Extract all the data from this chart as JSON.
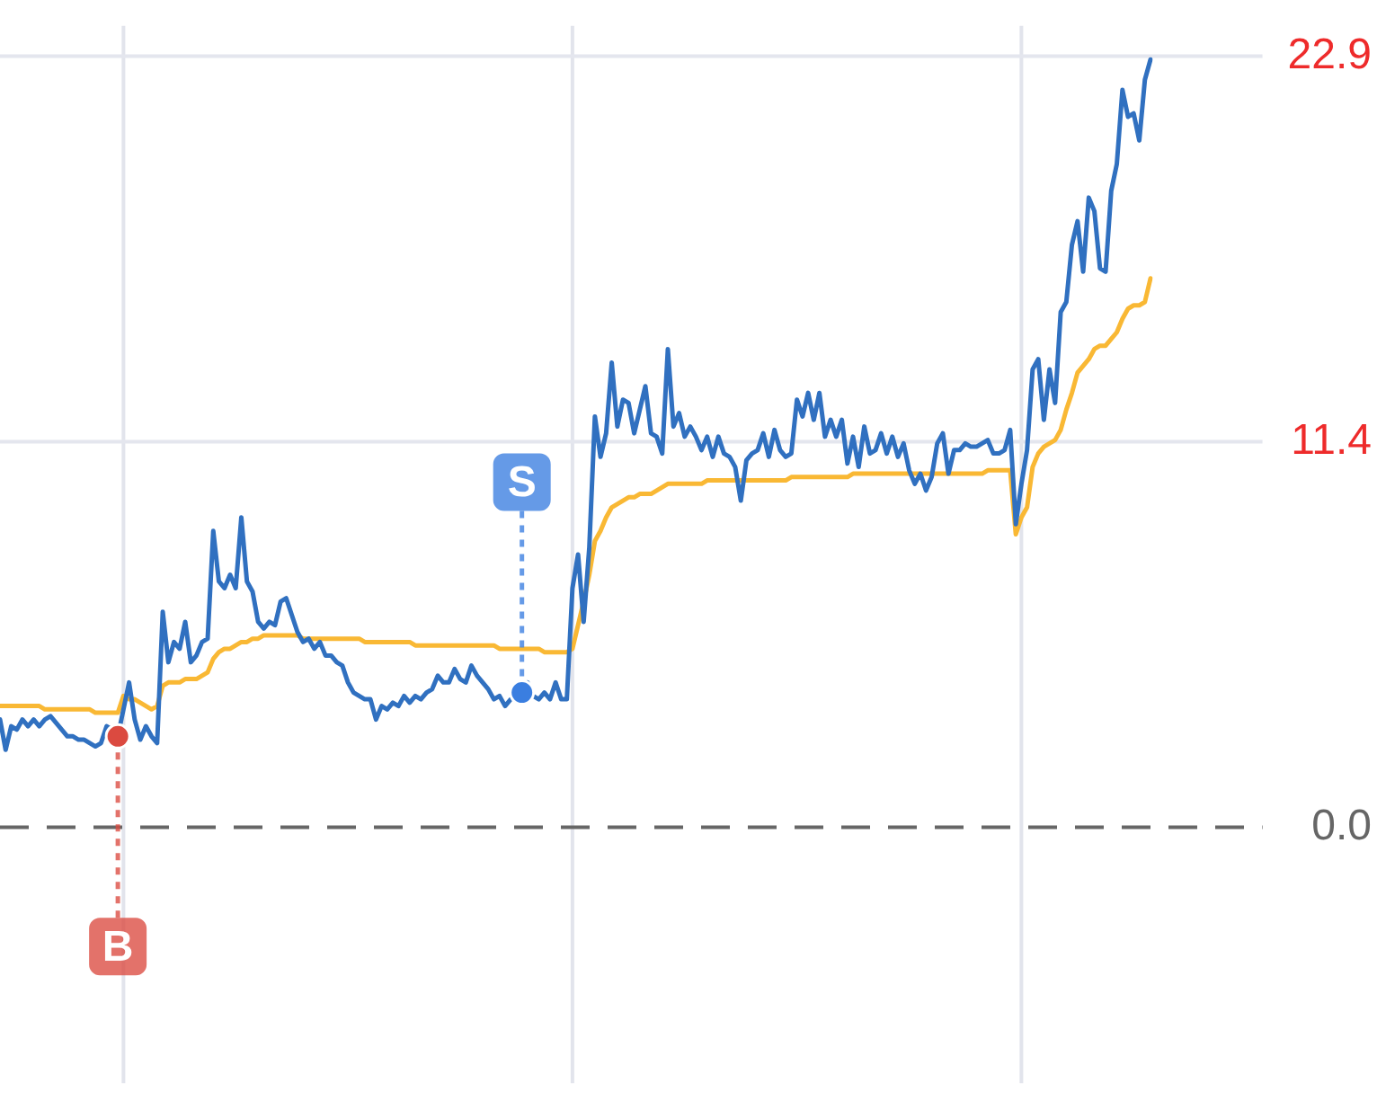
{
  "chart_data": {
    "type": "line",
    "categories": [
      null,
      null,
      null,
      null,
      null,
      null,
      null,
      null,
      null,
      null,
      null,
      null,
      null,
      null,
      null,
      null,
      null,
      null,
      null,
      null,
      null,
      null,
      null,
      null,
      null,
      null,
      null,
      null,
      null,
      null,
      null,
      null,
      null,
      null,
      null,
      null,
      null,
      null,
      null,
      null,
      null,
      null,
      null,
      null,
      null,
      null,
      null,
      null,
      null,
      null,
      null,
      null,
      null,
      null,
      null,
      null,
      null,
      null,
      null,
      null,
      null,
      null,
      null,
      null,
      null,
      null,
      null,
      null,
      null,
      null,
      null,
      null,
      null,
      null,
      null,
      null,
      null,
      null,
      null,
      null,
      null,
      null,
      null,
      null,
      null,
      null,
      null,
      null,
      null,
      null,
      null,
      null,
      null,
      null,
      null,
      null,
      null,
      null,
      null,
      null,
      null,
      null,
      null,
      null,
      null,
      null,
      null,
      null,
      null,
      null,
      null,
      null,
      null,
      null,
      null,
      null,
      null,
      null,
      null,
      null,
      null,
      null,
      null,
      null,
      null,
      null,
      null,
      null,
      null,
      null,
      null,
      null,
      null,
      null,
      null,
      null,
      null,
      null,
      null,
      null,
      null,
      null,
      null,
      null,
      null,
      null,
      null,
      null,
      null,
      null,
      null,
      null,
      null,
      null,
      null,
      null,
      null,
      null,
      null,
      null,
      null,
      null,
      null,
      null,
      null,
      null,
      null,
      null,
      null,
      null,
      null,
      null,
      null,
      null,
      null,
      null,
      null,
      null,
      null,
      null,
      null,
      null,
      null,
      null,
      null,
      null,
      null,
      null,
      null,
      null,
      null,
      null,
      null,
      null,
      null,
      null,
      null,
      null,
      null,
      null,
      null,
      null,
      null,
      null,
      null,
      null
    ],
    "series": [
      {
        "color": "#3070c0",
        "values": [
          3.2,
          2.3,
          3.0,
          2.9,
          3.2,
          3.0,
          3.2,
          3.0,
          3.2,
          3.3,
          3.1,
          2.9,
          2.7,
          2.7,
          2.6,
          2.6,
          2.5,
          2.4,
          2.5,
          3.0,
          2.9,
          2.7,
          3.5,
          4.3,
          3.2,
          2.6,
          3.0,
          2.7,
          2.5,
          6.4,
          4.9,
          5.5,
          5.3,
          6.1,
          4.9,
          5.1,
          5.5,
          5.6,
          8.8,
          7.3,
          7.1,
          7.5,
          7.1,
          9.2,
          7.3,
          7.0,
          6.1,
          5.9,
          6.1,
          6.0,
          6.7,
          6.8,
          6.3,
          5.8,
          5.5,
          5.6,
          5.3,
          5.5,
          5.1,
          5.1,
          4.9,
          4.8,
          4.3,
          4.0,
          3.9,
          3.8,
          3.8,
          3.2,
          3.6,
          3.5,
          3.7,
          3.6,
          3.9,
          3.7,
          3.9,
          3.8,
          4.0,
          4.1,
          4.5,
          4.3,
          4.3,
          4.7,
          4.4,
          4.3,
          4.8,
          4.5,
          4.3,
          4.1,
          3.8,
          3.9,
          3.6,
          3.8,
          3.9,
          4.0,
          4.3,
          3.9,
          3.8,
          4.0,
          3.8,
          4.3,
          3.8,
          3.8,
          7.1,
          8.1,
          6.1,
          8.3,
          12.2,
          11.0,
          11.7,
          13.8,
          11.9,
          12.7,
          12.6,
          11.7,
          12.4,
          13.1,
          11.7,
          11.6,
          11.1,
          14.2,
          11.9,
          12.3,
          11.6,
          11.9,
          11.6,
          11.2,
          11.6,
          11.0,
          11.6,
          11.1,
          11.0,
          10.7,
          9.7,
          10.9,
          11.1,
          11.2,
          11.7,
          11.0,
          11.8,
          11.2,
          11.0,
          11.1,
          12.7,
          12.2,
          12.9,
          12.1,
          12.9,
          11.6,
          12.1,
          11.6,
          12.1,
          10.8,
          11.6,
          10.7,
          11.9,
          11.1,
          11.2,
          11.7,
          11.1,
          11.6,
          11.0,
          11.4,
          10.6,
          10.2,
          10.5,
          10.0,
          10.4,
          11.4,
          11.7,
          10.5,
          11.2,
          11.2,
          11.4,
          11.3,
          11.3,
          11.4,
          11.5,
          11.1,
          11.1,
          11.2,
          11.8,
          9.0,
          10.2,
          11.2,
          13.6,
          13.9,
          12.1,
          13.6,
          12.6,
          15.3,
          15.6,
          17.3,
          18.0,
          16.5,
          18.7,
          18.3,
          16.6,
          16.5,
          18.9,
          19.7,
          21.9,
          21.1,
          21.2,
          20.4,
          22.2,
          22.8
        ]
      },
      {
        "color": "#f9b834",
        "values": [
          3.6,
          3.6,
          3.6,
          3.6,
          3.6,
          3.6,
          3.6,
          3.6,
          3.5,
          3.5,
          3.5,
          3.5,
          3.5,
          3.5,
          3.5,
          3.5,
          3.5,
          3.4,
          3.4,
          3.4,
          3.4,
          3.4,
          3.9,
          3.8,
          3.8,
          3.7,
          3.6,
          3.5,
          3.6,
          4.2,
          4.3,
          4.3,
          4.3,
          4.4,
          4.4,
          4.4,
          4.5,
          4.6,
          5.0,
          5.2,
          5.3,
          5.3,
          5.4,
          5.5,
          5.5,
          5.6,
          5.6,
          5.7,
          5.7,
          5.7,
          5.7,
          5.7,
          5.7,
          5.7,
          5.6,
          5.6,
          5.6,
          5.6,
          5.6,
          5.6,
          5.6,
          5.6,
          5.6,
          5.6,
          5.6,
          5.5,
          5.5,
          5.5,
          5.5,
          5.5,
          5.5,
          5.5,
          5.5,
          5.5,
          5.4,
          5.4,
          5.4,
          5.4,
          5.4,
          5.4,
          5.4,
          5.4,
          5.4,
          5.4,
          5.4,
          5.4,
          5.4,
          5.4,
          5.4,
          5.3,
          5.3,
          5.3,
          5.3,
          5.3,
          5.3,
          5.3,
          5.3,
          5.2,
          5.2,
          5.2,
          5.2,
          5.2,
          5.3,
          6.0,
          6.7,
          7.5,
          8.5,
          8.8,
          9.2,
          9.5,
          9.6,
          9.7,
          9.8,
          9.8,
          9.9,
          9.9,
          9.9,
          10.0,
          10.1,
          10.2,
          10.2,
          10.2,
          10.2,
          10.2,
          10.2,
          10.2,
          10.3,
          10.3,
          10.3,
          10.3,
          10.3,
          10.3,
          10.3,
          10.3,
          10.3,
          10.3,
          10.3,
          10.3,
          10.3,
          10.3,
          10.3,
          10.4,
          10.4,
          10.4,
          10.4,
          10.4,
          10.4,
          10.4,
          10.4,
          10.4,
          10.4,
          10.4,
          10.5,
          10.5,
          10.5,
          10.5,
          10.5,
          10.5,
          10.5,
          10.5,
          10.5,
          10.5,
          10.5,
          10.5,
          10.5,
          10.5,
          10.5,
          10.5,
          10.5,
          10.5,
          10.5,
          10.5,
          10.5,
          10.5,
          10.5,
          10.5,
          10.6,
          10.6,
          10.6,
          10.6,
          10.6,
          8.7,
          9.2,
          9.5,
          10.7,
          11.1,
          11.3,
          11.4,
          11.5,
          11.8,
          12.4,
          12.9,
          13.5,
          13.7,
          13.9,
          14.2,
          14.3,
          14.3,
          14.5,
          14.7,
          15.1,
          15.4,
          15.5,
          15.5,
          15.6,
          16.3
        ]
      },
      {
        "type": "scatter",
        "marker": "circle",
        "color": "#db4a40",
        "values": [
          null,
          null,
          null,
          null,
          null,
          null,
          null,
          null,
          null,
          null,
          null,
          null,
          null,
          null,
          null,
          null,
          null,
          null,
          null,
          null,
          null,
          2.7,
          null,
          null,
          null,
          null,
          null,
          null,
          null,
          null,
          null,
          null,
          null,
          null,
          null,
          null,
          null,
          null,
          null,
          null,
          null,
          null,
          null,
          null,
          null,
          null,
          null,
          null,
          null,
          null,
          null,
          null,
          null,
          null,
          null,
          null,
          null,
          null,
          null,
          null,
          null,
          null,
          null,
          null,
          null,
          null,
          null,
          null,
          null,
          null,
          null,
          null,
          null,
          null,
          null,
          null,
          null,
          null,
          null,
          null,
          null,
          null,
          null,
          null,
          null,
          null,
          null,
          null,
          null,
          null,
          null,
          null,
          null,
          null,
          null,
          null,
          null,
          null,
          null,
          null,
          null,
          null,
          null,
          null,
          null,
          null,
          null,
          null,
          null,
          null,
          null,
          null,
          null,
          null,
          null,
          null,
          null,
          null,
          null,
          null,
          null,
          null,
          null,
          null,
          null,
          null,
          null,
          null,
          null,
          null,
          null,
          null,
          null,
          null,
          null,
          null,
          null,
          null,
          null,
          null,
          null,
          null,
          null,
          null,
          null,
          null,
          null,
          null,
          null,
          null,
          null,
          null,
          null,
          null,
          null,
          null,
          null,
          null,
          null,
          null,
          null,
          null,
          null,
          null,
          null,
          null,
          null,
          null,
          null,
          null,
          null,
          null,
          null,
          null,
          null,
          null,
          null,
          null,
          null,
          null,
          null,
          null,
          null,
          null,
          null,
          null,
          null,
          null,
          null,
          null,
          null,
          null,
          null,
          null,
          null,
          null,
          null,
          null,
          null,
          null,
          null,
          null,
          null,
          null,
          null,
          null
        ],
        "value_labels": [
          null,
          null,
          null,
          null,
          null,
          null,
          null,
          null,
          null,
          null,
          null,
          null,
          null,
          null,
          null,
          null,
          null,
          null,
          null,
          null,
          null,
          "B",
          null,
          null,
          null,
          null,
          null,
          null,
          null,
          null,
          null,
          null,
          null,
          null,
          null,
          null,
          null,
          null,
          null,
          null,
          null,
          null,
          null,
          null,
          null,
          null,
          null,
          null,
          null,
          null,
          null,
          null,
          null,
          null,
          null,
          null,
          null,
          null,
          null,
          null,
          null,
          null,
          null,
          null,
          null,
          null,
          null,
          null,
          null,
          null,
          null,
          null,
          null,
          null,
          null,
          null,
          null,
          null,
          null,
          null,
          null,
          null,
          null,
          null,
          null,
          null,
          null,
          null,
          null,
          null,
          null,
          null,
          null,
          null,
          null,
          null,
          null,
          null,
          null,
          null,
          null,
          null,
          null,
          null,
          null,
          null,
          null,
          null,
          null,
          null,
          null,
          null,
          null,
          null,
          null,
          null,
          null,
          null,
          null,
          null,
          null,
          null,
          null,
          null,
          null,
          null,
          null,
          null,
          null,
          null,
          null,
          null,
          null,
          null,
          null,
          null,
          null,
          null,
          null,
          null,
          null,
          null,
          null,
          null,
          null,
          null,
          null,
          null,
          null,
          null,
          null,
          null,
          null,
          null,
          null,
          null,
          null,
          null,
          null,
          null,
          null,
          null,
          null,
          null,
          null,
          null,
          null,
          null,
          null,
          null,
          null,
          null,
          null,
          null,
          null,
          null,
          null,
          null,
          null,
          null,
          null,
          null,
          null,
          null,
          null,
          null,
          null,
          null,
          null,
          null,
          null,
          null,
          null,
          null,
          null,
          null,
          null,
          null,
          null,
          null,
          null,
          null,
          null,
          null,
          null,
          null
        ]
      },
      {
        "type": "scatter",
        "marker": "circle",
        "color": "#3a7ee0",
        "values": [
          null,
          null,
          null,
          null,
          null,
          null,
          null,
          null,
          null,
          null,
          null,
          null,
          null,
          null,
          null,
          null,
          null,
          null,
          null,
          null,
          null,
          null,
          null,
          null,
          null,
          null,
          null,
          null,
          null,
          null,
          null,
          null,
          null,
          null,
          null,
          null,
          null,
          null,
          null,
          null,
          null,
          null,
          null,
          null,
          null,
          null,
          null,
          null,
          null,
          null,
          null,
          null,
          null,
          null,
          null,
          null,
          null,
          null,
          null,
          null,
          null,
          null,
          null,
          null,
          null,
          null,
          null,
          null,
          null,
          null,
          null,
          null,
          null,
          null,
          null,
          null,
          null,
          null,
          null,
          null,
          null,
          null,
          null,
          null,
          null,
          null,
          null,
          null,
          null,
          null,
          null,
          null,
          null,
          4.0,
          null,
          null,
          null,
          null,
          null,
          null,
          null,
          null,
          null,
          null,
          null,
          null,
          null,
          null,
          null,
          null,
          null,
          null,
          null,
          null,
          null,
          null,
          null,
          null,
          null,
          null,
          null,
          null,
          null,
          null,
          null,
          null,
          null,
          null,
          null,
          null,
          null,
          null,
          null,
          null,
          null,
          null,
          null,
          null,
          null,
          null,
          null,
          null,
          null,
          null,
          null,
          null,
          null,
          null,
          null,
          null,
          null,
          null,
          null,
          null,
          null,
          null,
          null,
          null,
          null,
          null,
          null,
          null,
          null,
          null,
          null,
          null,
          null,
          null,
          null,
          null,
          null,
          null,
          null,
          null,
          null,
          null,
          null,
          null,
          null,
          null,
          null,
          null,
          null,
          null,
          null,
          null,
          null,
          null,
          null,
          null,
          null,
          null,
          null,
          null,
          null,
          null,
          null,
          null,
          null,
          null,
          null,
          null,
          null,
          null,
          null,
          null
        ],
        "value_labels": [
          null,
          null,
          null,
          null,
          null,
          null,
          null,
          null,
          null,
          null,
          null,
          null,
          null,
          null,
          null,
          null,
          null,
          null,
          null,
          null,
          null,
          null,
          null,
          null,
          null,
          null,
          null,
          null,
          null,
          null,
          null,
          null,
          null,
          null,
          null,
          null,
          null,
          null,
          null,
          null,
          null,
          null,
          null,
          null,
          null,
          null,
          null,
          null,
          null,
          null,
          null,
          null,
          null,
          null,
          null,
          null,
          null,
          null,
          null,
          null,
          null,
          null,
          null,
          null,
          null,
          null,
          null,
          null,
          null,
          null,
          null,
          null,
          null,
          null,
          null,
          null,
          null,
          null,
          null,
          null,
          null,
          null,
          null,
          null,
          null,
          null,
          null,
          null,
          null,
          null,
          null,
          null,
          null,
          "S",
          null,
          null,
          null,
          null,
          null,
          null,
          null,
          null,
          null,
          null,
          null,
          null,
          null,
          null,
          null,
          null,
          null,
          null,
          null,
          null,
          null,
          null,
          null,
          null,
          null,
          null,
          null,
          null,
          null,
          null,
          null,
          null,
          null,
          null,
          null,
          null,
          null,
          null,
          null,
          null,
          null,
          null,
          null,
          null,
          null,
          null,
          null,
          null,
          null,
          null,
          null,
          null,
          null,
          null,
          null,
          null,
          null,
          null,
          null,
          null,
          null,
          null,
          null,
          null,
          null,
          null,
          null,
          null,
          null,
          null,
          null,
          null,
          null,
          null,
          null,
          null,
          null,
          null,
          null,
          null,
          null,
          null,
          null,
          null,
          null,
          null,
          null,
          null,
          null,
          null,
          null,
          null,
          null,
          null,
          null,
          null,
          null,
          null,
          null,
          null,
          null,
          null,
          null,
          null,
          null,
          null,
          null,
          null,
          null,
          null,
          null,
          null
        ]
      }
    ],
    "ylim": [
      -7.6,
      23.8
    ],
    "yticks": [
      {
        "value": 0,
        "label": "0.0"
      },
      {
        "value": 11.45,
        "label": "11.4"
      },
      {
        "value": 22.9,
        "label": "22.9"
      }
    ],
    "grid": "y",
    "tick_labels": "y",
    "ref_lines": [
      {
        "axis": "y",
        "value": 0,
        "color": "#666666",
        "line_style": "dashed"
      }
    ]
  }
}
